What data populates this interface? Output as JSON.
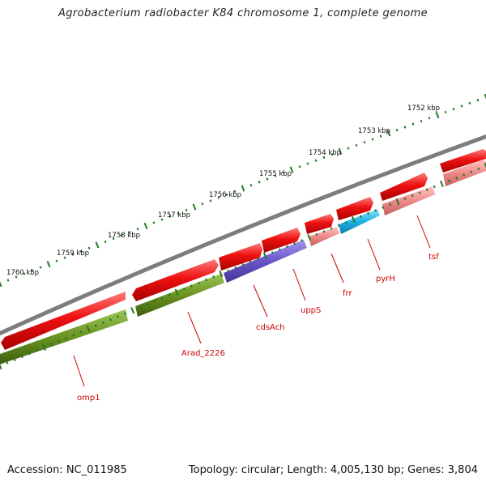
{
  "title": "Agrobacterium radiobacter K84 chromosome 1, complete genome",
  "accession_text": "Accession: NC_011985",
  "stats_text": "Topology: circular; Length: 4,005,130 bp; Genes: 3,804",
  "ticks": [
    "1760 kbp",
    "1759 kbp",
    "1758 kbp",
    "1757 kbp",
    "1756 kbp",
    "1755 kbp",
    "1754 kbp",
    "1753 kbp",
    "1752 kbp"
  ],
  "gene_labels": [
    "omp1",
    "Arad_2226",
    "cdsAch",
    "uppS",
    "frr",
    "pyrH",
    "tsf"
  ],
  "colors": {
    "backbone": "#808080",
    "cds": "#ee1111",
    "cds_light": "#f08a8a",
    "gene_green": "#6a9320",
    "gene_purple": "#6a55c8",
    "gene_cyan": "#1cb3e6",
    "ticks": "#1f7a1f",
    "label": "#cc0000"
  }
}
